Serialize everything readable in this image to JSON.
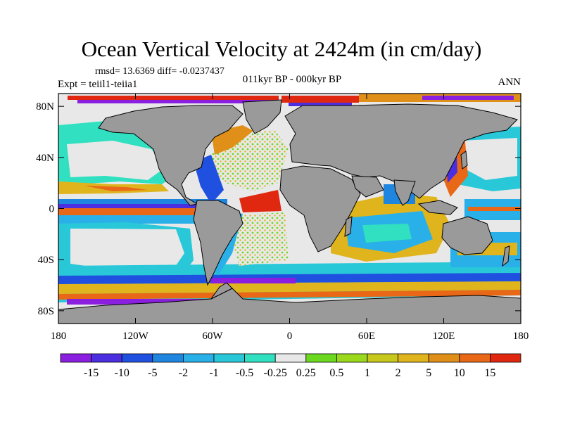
{
  "title": "Ocean Vertical Velocity at 2424m (in cm/day)",
  "stats": "rmsd= 13.6369 diff= -0.0237437",
  "expt": "Expt = teiil1-teiia1",
  "period": "011kyr BP - 000kyr BP",
  "season": "ANN",
  "map": {
    "land_color": "#9a9a9a",
    "lat_range": [
      -90,
      90
    ],
    "lon_range": [
      -180,
      180
    ],
    "lat_ticks": [
      {
        "value": 80,
        "label": "80N"
      },
      {
        "value": 40,
        "label": "40N"
      },
      {
        "value": 0,
        "label": "0"
      },
      {
        "value": -40,
        "label": "40S"
      },
      {
        "value": -80,
        "label": "80S"
      }
    ],
    "lon_ticks": [
      {
        "value": -180,
        "label": "180"
      },
      {
        "value": -120,
        "label": "120W"
      },
      {
        "value": -60,
        "label": "60W"
      },
      {
        "value": 0,
        "label": "0"
      },
      {
        "value": 60,
        "label": "60E"
      },
      {
        "value": 120,
        "label": "120E"
      },
      {
        "value": 180,
        "label": "180"
      }
    ]
  },
  "colorbar": {
    "colors": [
      "#8a1fe0",
      "#4a2ee0",
      "#2050e0",
      "#1f86e0",
      "#2ab0e8",
      "#28c8d8",
      "#30e0c0",
      "#e8e8e8",
      "#6cd820",
      "#9ad81c",
      "#c8c81c",
      "#e0b41c",
      "#e09018",
      "#e86818",
      "#e02810"
    ],
    "labels": [
      "-15",
      "-10",
      "-5",
      "-2",
      "-1",
      "-0.5",
      "-0.25",
      "0.25",
      "0.5",
      "1",
      "2",
      "5",
      "10",
      "15"
    ]
  }
}
